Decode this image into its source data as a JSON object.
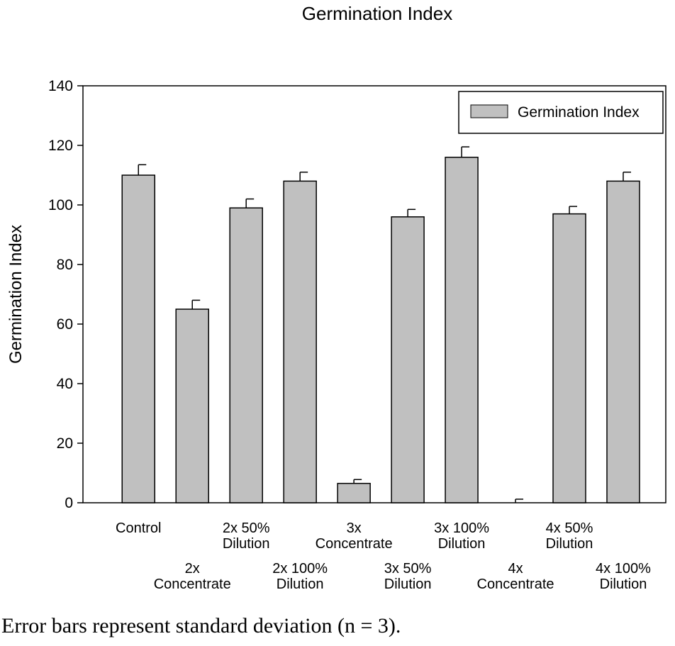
{
  "chart_data": {
    "type": "bar",
    "title": "Germination Index",
    "xlabel": "",
    "ylabel": "Germination Index",
    "ylim": [
      0,
      140
    ],
    "yticks": [
      0,
      20,
      40,
      60,
      80,
      100,
      120,
      140
    ],
    "categories": [
      [
        "Control"
      ],
      [
        "2x",
        "Concentrate"
      ],
      [
        "2x 50%",
        "Dilution"
      ],
      [
        "2x 100%",
        "Dilution"
      ],
      [
        "3x",
        "Concentrate"
      ],
      [
        "3x 50%",
        "Dilution"
      ],
      [
        "3x 100%",
        "Dilution"
      ],
      [
        "4x",
        "Concentrate"
      ],
      [
        "4x 50%",
        "Dilution"
      ],
      [
        "4x 100%",
        "Dilution"
      ]
    ],
    "series": [
      {
        "name": "Germination Index",
        "color": "#c0c0c0",
        "values": [
          110,
          65,
          99,
          108,
          6.5,
          96,
          116,
          0,
          97,
          108
        ],
        "error": [
          3.5,
          3,
          3,
          3,
          1.3,
          2.5,
          3.5,
          1.2,
          2.5,
          3
        ]
      }
    ],
    "grid": false,
    "legend": "top-right"
  },
  "caption": "Error bars represent standard deviation (n = 3)."
}
